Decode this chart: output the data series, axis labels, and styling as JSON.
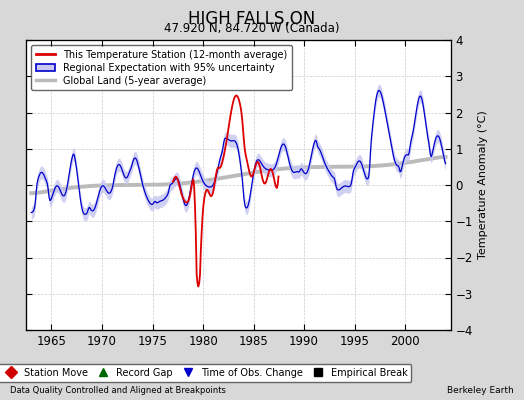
{
  "title": "HIGH FALLS,ON",
  "subtitle": "47.920 N, 84.720 W (Canada)",
  "ylabel": "Temperature Anomaly (°C)",
  "xlabel_bottom_left": "Data Quality Controlled and Aligned at Breakpoints",
  "xlabel_bottom_right": "Berkeley Earth",
  "xlim": [
    1962.5,
    2004.5
  ],
  "ylim": [
    -4,
    4
  ],
  "yticks": [
    -4,
    -3,
    -2,
    -1,
    0,
    1,
    2,
    3,
    4
  ],
  "xticks": [
    1965,
    1970,
    1975,
    1980,
    1985,
    1990,
    1995,
    2000
  ],
  "bg_color": "#d8d8d8",
  "plot_bg_color": "#ffffff",
  "red_line_color": "#dd0000",
  "blue_line_color": "#0000cc",
  "blue_fill_color": "#c8c8f0",
  "gray_line_color": "#bbbbbb",
  "legend_items": [
    "This Temperature Station (12-month average)",
    "Regional Expectation with 95% uncertainty",
    "Global Land (5-year average)"
  ],
  "bottom_legend": [
    {
      "marker": "D",
      "color": "#cc0000",
      "label": "Station Move"
    },
    {
      "marker": "^",
      "color": "#006600",
      "label": "Record Gap"
    },
    {
      "marker": "v",
      "color": "#0000cc",
      "label": "Time of Obs. Change"
    },
    {
      "marker": "s",
      "color": "#000000",
      "label": "Empirical Break"
    }
  ]
}
